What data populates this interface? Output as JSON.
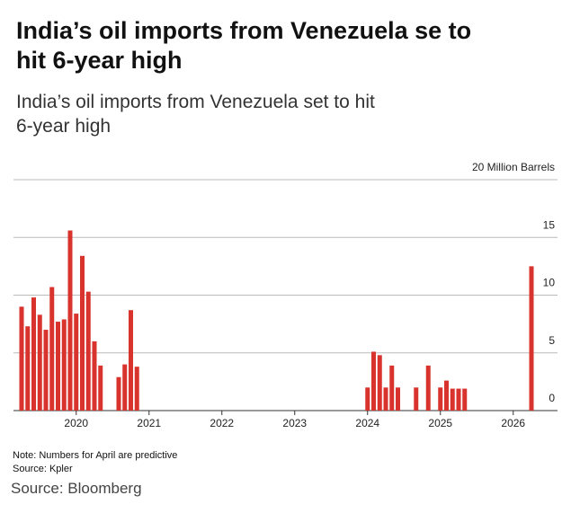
{
  "chart_data": {
    "type": "bar",
    "title": "India’s oil imports from Venezuela se to hit 6-year high",
    "subtitle": "India’s oil imports from Venezuela set to hit 6-year high",
    "note": "Note: Numbers for April are predictive",
    "source_note": "Source: Kpler",
    "source": "Source: Bloomberg",
    "categories": [
      null,
      null,
      null,
      null,
      null,
      null,
      null,
      null,
      null,
      "2020",
      null,
      null,
      null,
      null,
      null,
      null,
      null,
      null,
      null,
      null,
      null,
      "2021",
      null,
      null,
      null,
      null,
      null,
      null,
      null,
      null,
      null,
      null,
      null,
      "2022",
      null,
      null,
      null,
      null,
      null,
      null,
      null,
      null,
      null,
      null,
      null,
      "2023",
      null,
      null,
      null,
      null,
      null,
      null,
      null,
      null,
      null,
      null,
      null,
      "2024",
      null,
      null,
      null,
      null,
      null,
      null,
      null,
      null,
      null,
      null,
      null,
      "2025",
      null,
      null,
      null,
      null,
      null,
      null,
      null,
      null,
      null,
      null,
      null,
      "2026",
      null,
      null,
      null
    ],
    "values": [
      9.0,
      7.3,
      9.8,
      8.3,
      7.0,
      10.7,
      7.7,
      7.9,
      15.6,
      8.4,
      13.4,
      10.3,
      6.0,
      3.9,
      0,
      0,
      2.9,
      4.0,
      8.7,
      3.8,
      0,
      0,
      0,
      0,
      0,
      0,
      0,
      0,
      0,
      0,
      0,
      0,
      0,
      0,
      0,
      0,
      0,
      0,
      0,
      0,
      0,
      0,
      0,
      0,
      0,
      0,
      0,
      0,
      0,
      0,
      0,
      0,
      0,
      0,
      0,
      0,
      0,
      2.0,
      5.1,
      4.8,
      2.0,
      3.9,
      2.0,
      0,
      0,
      2.0,
      0,
      3.9,
      0,
      2.0,
      2.6,
      1.9,
      1.9,
      1.9,
      0,
      0,
      0,
      0,
      0,
      0,
      0,
      0,
      0,
      0,
      12.5
    ],
    "color": "#d9332e",
    "ylim": [
      0,
      20
    ],
    "yticks": [
      0,
      5,
      10,
      15,
      {
        "value": 20,
        "label": "20 Million Barrels"
      }
    ],
    "grid": true
  }
}
